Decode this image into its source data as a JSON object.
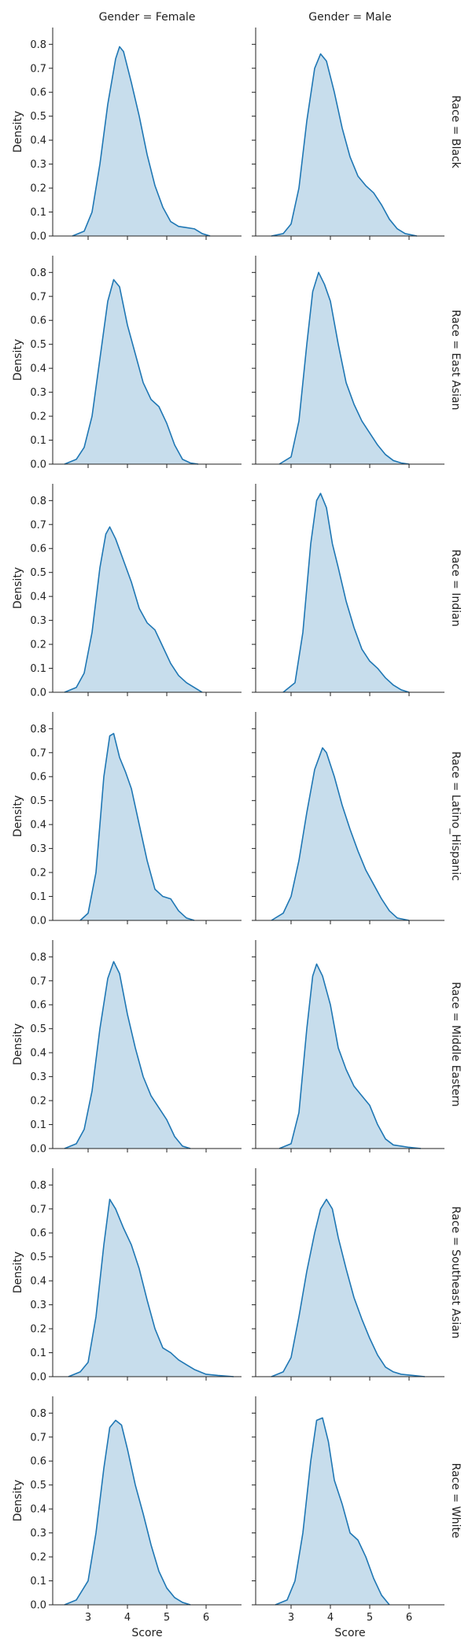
{
  "chart_data": {
    "type": "area",
    "kind": "kde-facet-grid",
    "col_variable": "Gender",
    "row_variable": "Race",
    "col_titles": [
      "Gender = Female",
      "Gender = Male"
    ],
    "row_titles": [
      "Race = Black",
      "Race = East Asian",
      "Race = Indian",
      "Race = Latino_Hispanic",
      "Race = Middle Eastern",
      "Race = Southeast Asian",
      "Race = White"
    ],
    "xlabel": "Score",
    "ylabel": "Density",
    "xlim": [
      2.1,
      6.9
    ],
    "ylim": [
      0,
      0.87
    ],
    "xticks": [
      "3",
      "4",
      "5",
      "6"
    ],
    "xtick_values": [
      3,
      4,
      5,
      6
    ],
    "yticks": [
      "0.0",
      "0.1",
      "0.2",
      "0.3",
      "0.4",
      "0.5",
      "0.6",
      "0.7",
      "0.8"
    ],
    "ytick_values": [
      0,
      0.1,
      0.2,
      0.3,
      0.4,
      0.5,
      0.6,
      0.7,
      0.8
    ],
    "line_color": "#1f77b4",
    "fill_color": "#1f77b4",
    "fill_opacity": 0.25,
    "grid": false,
    "panels": [
      {
        "row": 0,
        "col": 0,
        "x": [
          2.6,
          2.9,
          3.1,
          3.3,
          3.5,
          3.7,
          3.8,
          3.9,
          4.1,
          4.3,
          4.5,
          4.7,
          4.9,
          5.1,
          5.3,
          5.5,
          5.7,
          5.9,
          6.1
        ],
        "y": [
          0.0,
          0.02,
          0.1,
          0.3,
          0.55,
          0.74,
          0.79,
          0.77,
          0.64,
          0.5,
          0.34,
          0.21,
          0.12,
          0.06,
          0.04,
          0.035,
          0.03,
          0.01,
          0.0
        ]
      },
      {
        "row": 0,
        "col": 1,
        "x": [
          2.5,
          2.8,
          3.0,
          3.2,
          3.4,
          3.6,
          3.75,
          3.9,
          4.1,
          4.3,
          4.5,
          4.7,
          4.9,
          5.1,
          5.3,
          5.5,
          5.7,
          5.9,
          6.2
        ],
        "y": [
          0.0,
          0.01,
          0.05,
          0.2,
          0.48,
          0.7,
          0.76,
          0.73,
          0.6,
          0.45,
          0.33,
          0.25,
          0.21,
          0.18,
          0.13,
          0.07,
          0.03,
          0.01,
          0.0
        ]
      },
      {
        "row": 1,
        "col": 0,
        "x": [
          2.4,
          2.7,
          2.9,
          3.1,
          3.3,
          3.5,
          3.65,
          3.8,
          4.0,
          4.2,
          4.4,
          4.6,
          4.8,
          5.0,
          5.2,
          5.4,
          5.6,
          5.8
        ],
        "y": [
          0.0,
          0.02,
          0.07,
          0.2,
          0.44,
          0.68,
          0.77,
          0.74,
          0.58,
          0.46,
          0.34,
          0.27,
          0.24,
          0.17,
          0.08,
          0.02,
          0.005,
          0.0
        ]
      },
      {
        "row": 1,
        "col": 1,
        "x": [
          2.7,
          3.0,
          3.2,
          3.4,
          3.55,
          3.7,
          3.85,
          4.0,
          4.2,
          4.4,
          4.6,
          4.8,
          5.0,
          5.2,
          5.4,
          5.6,
          5.8,
          6.0
        ],
        "y": [
          0.0,
          0.03,
          0.18,
          0.5,
          0.72,
          0.8,
          0.75,
          0.68,
          0.5,
          0.34,
          0.25,
          0.18,
          0.13,
          0.08,
          0.04,
          0.015,
          0.005,
          0.0
        ]
      },
      {
        "row": 2,
        "col": 0,
        "x": [
          2.4,
          2.7,
          2.9,
          3.1,
          3.3,
          3.45,
          3.55,
          3.7,
          3.9,
          4.1,
          4.3,
          4.5,
          4.7,
          4.9,
          5.1,
          5.3,
          5.5,
          5.7,
          5.9
        ],
        "y": [
          0.0,
          0.02,
          0.08,
          0.25,
          0.52,
          0.66,
          0.69,
          0.64,
          0.55,
          0.46,
          0.35,
          0.29,
          0.26,
          0.19,
          0.12,
          0.07,
          0.04,
          0.02,
          0.0
        ]
      },
      {
        "row": 2,
        "col": 1,
        "x": [
          2.8,
          3.1,
          3.3,
          3.5,
          3.65,
          3.75,
          3.9,
          4.05,
          4.2,
          4.4,
          4.6,
          4.8,
          5.0,
          5.2,
          5.4,
          5.6,
          5.8,
          6.0
        ],
        "y": [
          0.0,
          0.04,
          0.25,
          0.62,
          0.8,
          0.83,
          0.77,
          0.62,
          0.52,
          0.38,
          0.27,
          0.18,
          0.13,
          0.1,
          0.06,
          0.03,
          0.01,
          0.0
        ]
      },
      {
        "row": 3,
        "col": 0,
        "x": [
          2.8,
          3.0,
          3.2,
          3.4,
          3.55,
          3.65,
          3.8,
          3.95,
          4.1,
          4.3,
          4.5,
          4.7,
          4.9,
          5.1,
          5.3,
          5.5,
          5.7
        ],
        "y": [
          0.0,
          0.03,
          0.2,
          0.6,
          0.77,
          0.78,
          0.68,
          0.62,
          0.55,
          0.4,
          0.25,
          0.13,
          0.1,
          0.09,
          0.04,
          0.01,
          0.0
        ]
      },
      {
        "row": 3,
        "col": 1,
        "x": [
          2.5,
          2.8,
          3.0,
          3.2,
          3.4,
          3.6,
          3.8,
          3.9,
          4.1,
          4.3,
          4.5,
          4.7,
          4.9,
          5.1,
          5.3,
          5.5,
          5.7,
          6.0
        ],
        "y": [
          0.0,
          0.03,
          0.1,
          0.25,
          0.45,
          0.63,
          0.72,
          0.7,
          0.6,
          0.48,
          0.38,
          0.29,
          0.21,
          0.15,
          0.09,
          0.04,
          0.01,
          0.0
        ]
      },
      {
        "row": 4,
        "col": 0,
        "x": [
          2.4,
          2.7,
          2.9,
          3.1,
          3.3,
          3.5,
          3.65,
          3.8,
          4.0,
          4.2,
          4.4,
          4.6,
          4.8,
          5.0,
          5.2,
          5.4,
          5.6
        ],
        "y": [
          0.0,
          0.02,
          0.08,
          0.24,
          0.5,
          0.71,
          0.78,
          0.73,
          0.56,
          0.42,
          0.3,
          0.22,
          0.17,
          0.12,
          0.05,
          0.01,
          0.0
        ]
      },
      {
        "row": 4,
        "col": 1,
        "x": [
          2.7,
          3.0,
          3.2,
          3.4,
          3.55,
          3.65,
          3.8,
          4.0,
          4.2,
          4.4,
          4.6,
          4.8,
          5.0,
          5.2,
          5.4,
          5.6,
          5.8,
          6.0,
          6.3
        ],
        "y": [
          0.0,
          0.02,
          0.15,
          0.5,
          0.72,
          0.77,
          0.72,
          0.6,
          0.42,
          0.33,
          0.26,
          0.22,
          0.18,
          0.1,
          0.04,
          0.015,
          0.01,
          0.005,
          0.0
        ]
      },
      {
        "row": 5,
        "col": 0,
        "x": [
          2.5,
          2.8,
          3.0,
          3.2,
          3.4,
          3.55,
          3.7,
          3.9,
          4.1,
          4.3,
          4.5,
          4.7,
          4.9,
          5.1,
          5.3,
          5.5,
          5.7,
          6.0,
          6.3,
          6.7
        ],
        "y": [
          0.0,
          0.02,
          0.06,
          0.25,
          0.55,
          0.74,
          0.7,
          0.62,
          0.55,
          0.45,
          0.32,
          0.2,
          0.12,
          0.1,
          0.07,
          0.05,
          0.03,
          0.01,
          0.005,
          0.0
        ]
      },
      {
        "row": 5,
        "col": 1,
        "x": [
          2.5,
          2.8,
          3.0,
          3.2,
          3.4,
          3.6,
          3.75,
          3.9,
          4.05,
          4.2,
          4.4,
          4.6,
          4.8,
          5.0,
          5.2,
          5.4,
          5.6,
          5.8,
          6.1,
          6.4
        ],
        "y": [
          0.0,
          0.02,
          0.08,
          0.25,
          0.44,
          0.6,
          0.7,
          0.74,
          0.7,
          0.58,
          0.45,
          0.33,
          0.24,
          0.16,
          0.09,
          0.04,
          0.02,
          0.01,
          0.005,
          0.0
        ]
      },
      {
        "row": 6,
        "col": 0,
        "x": [
          2.4,
          2.7,
          3.0,
          3.2,
          3.4,
          3.55,
          3.7,
          3.85,
          4.0,
          4.2,
          4.4,
          4.6,
          4.8,
          5.0,
          5.2,
          5.4,
          5.6
        ],
        "y": [
          0.0,
          0.02,
          0.1,
          0.3,
          0.57,
          0.74,
          0.77,
          0.75,
          0.65,
          0.5,
          0.38,
          0.25,
          0.14,
          0.07,
          0.03,
          0.01,
          0.0
        ]
      },
      {
        "row": 6,
        "col": 1,
        "x": [
          2.6,
          2.9,
          3.1,
          3.3,
          3.5,
          3.65,
          3.8,
          3.95,
          4.1,
          4.3,
          4.5,
          4.7,
          4.9,
          5.1,
          5.3,
          5.5
        ],
        "y": [
          0.0,
          0.02,
          0.1,
          0.3,
          0.6,
          0.77,
          0.78,
          0.68,
          0.52,
          0.42,
          0.3,
          0.27,
          0.2,
          0.11,
          0.04,
          0.0
        ]
      }
    ]
  }
}
